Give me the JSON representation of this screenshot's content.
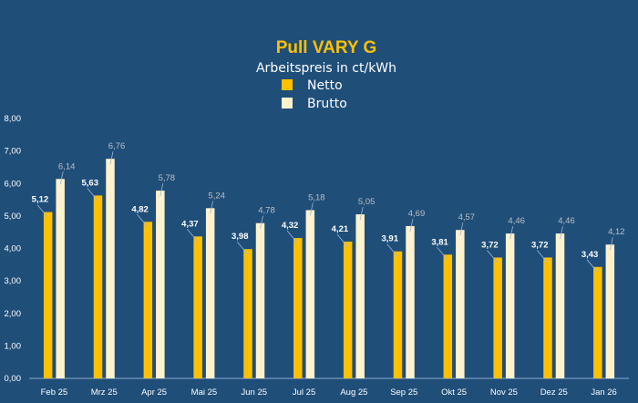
{
  "colors": {
    "background": "#1f4e79",
    "title": "#ffc000",
    "text": "#ffffff",
    "netto": "#ffc000",
    "brutto": "#fff2cc",
    "netto_label": "#ffffff",
    "brutto_label": "#bfbfbf",
    "axis": "#8faad0"
  },
  "chart_data": {
    "type": "bar",
    "title": "Pull VARY G",
    "subtitle": "Arbeitspreis in ct/kWh",
    "legend": [
      {
        "name": "Netto",
        "color": "#ffc000"
      },
      {
        "name": "Brutto",
        "color": "#fff2cc"
      }
    ],
    "legend_position": "top-center",
    "categories": [
      "Feb 25",
      "Mrz 25",
      "Apr 25",
      "Mai 25",
      "Jun 25",
      "Jul 25",
      "Aug 25",
      "Sep 25",
      "Okt 25",
      "Nov 25",
      "Dez 25",
      "Jan 26"
    ],
    "series": [
      {
        "name": "Netto",
        "values": [
          5.12,
          5.63,
          4.82,
          4.37,
          3.98,
          4.32,
          4.21,
          3.91,
          3.81,
          3.72,
          3.72,
          3.43
        ],
        "labels": [
          "5,12",
          "5,63",
          "4,82",
          "4,37",
          "3,98",
          "4,32",
          "4,21",
          "3,91",
          "3,81",
          "3,72",
          "3,72",
          "3,43"
        ]
      },
      {
        "name": "Brutto",
        "values": [
          6.14,
          6.76,
          5.78,
          5.24,
          4.78,
          5.18,
          5.05,
          4.69,
          4.57,
          4.46,
          4.46,
          4.12
        ],
        "labels": [
          "6,14",
          "6,76",
          "5,78",
          "5,24",
          "4,78",
          "5,18",
          "5,05",
          "4,69",
          "4,57",
          "4,46",
          "4,46",
          "4,12"
        ]
      }
    ],
    "yticks": [
      0,
      1,
      2,
      3,
      4,
      5,
      6,
      7,
      8
    ],
    "ytick_labels": [
      "0,00",
      "1,00",
      "2,00",
      "3,00",
      "4,00",
      "5,00",
      "6,00",
      "7,00",
      "8,00"
    ],
    "ylim": [
      0,
      8
    ],
    "grid": false
  }
}
